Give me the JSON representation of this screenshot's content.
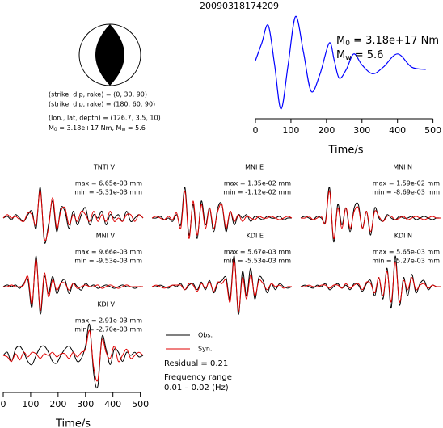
{
  "title": "20090318174209",
  "focal_mechanism": {
    "lines": [
      "(strike, dip, rake) = (0, 30, 90)",
      "(strike, dip, rake) = (180, 60, 90)",
      "(lon., lat, depth) = (126.7, 3.5, 10)"
    ],
    "moment": {
      "symbol": "M",
      "sub": "0",
      "text": " = 3.18e+17 Nm, "
    },
    "magnitude": {
      "symbol": "M",
      "sub": "w",
      "text": " = 5.6"
    }
  },
  "chart_data": [
    {
      "type": "line",
      "x": [
        0,
        18,
        36,
        54,
        72,
        92,
        113,
        135,
        157,
        182,
        208,
        222,
        236,
        256,
        277,
        300,
        330,
        360,
        400,
        440,
        480
      ],
      "series": [
        {
          "color": "#0000ff",
          "values": [
            0,
            0.4,
            0.8,
            -0.1,
            -1.1,
            -0.1,
            1.0,
            0.2,
            -0.7,
            -0.3,
            0.4,
            0,
            -0.4,
            -0.2,
            0.15,
            -0.1,
            -0.3,
            -0.15,
            0.15,
            -0.15,
            -0.2
          ]
        }
      ],
      "xlim": [
        0,
        510
      ],
      "xticks": [
        0,
        100,
        200,
        300,
        400,
        500
      ],
      "xlabel": "Time/s",
      "annotations": [
        {
          "symbol": "M",
          "sub": "0",
          "text": " = 3.18e+17 Nm"
        },
        {
          "symbol": "M",
          "sub": "w",
          "text": " = 5.6"
        }
      ]
    },
    {
      "type": "seismogram",
      "x": [
        0,
        15,
        30,
        45,
        60,
        75,
        90,
        105,
        120,
        135,
        150,
        165,
        180,
        195,
        210,
        225,
        240,
        255,
        270,
        285,
        300,
        315,
        330,
        345,
        360,
        375,
        390,
        405,
        420,
        435,
        450,
        465,
        480,
        495,
        510
      ],
      "xlim": [
        0,
        510
      ],
      "xticks": [
        0,
        100,
        200,
        300,
        400,
        500
      ],
      "xlabel": "Time/s",
      "legend": [
        {
          "name": "Obs.",
          "color": "#000000"
        },
        {
          "name": "Syn.",
          "color": "#e00000"
        }
      ],
      "stations": [
        {
          "name": "TNTI V",
          "max": "max = 6.65e-03 mm",
          "min": "min = -5.31e-03 mm",
          "obs": [
            0,
            0.05,
            -0.05,
            0.1,
            0,
            -0.1,
            0.1,
            0.2,
            -0.3,
            0.9,
            -0.7,
            -0.2,
            0.5,
            -0.4,
            0.3,
            0.2,
            -0.3,
            0.2,
            -0.2,
            0.1,
            0.3,
            -0.2,
            0.1,
            0,
            0.2,
            -0.2,
            0.1,
            0,
            0.1,
            -0.1,
            0.2,
            -0.1,
            0,
            0.1,
            0
          ],
          "syn": [
            0,
            0.1,
            0,
            0.05,
            -0.05,
            -0.1,
            0.15,
            0.1,
            -0.2,
            0.8,
            -0.6,
            -0.3,
            0.6,
            -0.3,
            0.2,
            0.3,
            -0.2,
            0.1,
            -0.1,
            0.2,
            0.1,
            -0.1,
            0.2,
            -0.1,
            0.1,
            -0.1,
            0.2,
            -0.1,
            0,
            -0.1,
            0.1,
            0.1,
            -0.1,
            0.1,
            0
          ]
        },
        {
          "name": "MNI E",
          "max": "max = 1.35e-02 mm",
          "min": "min = -1.12e-02 mm",
          "obs": [
            0,
            0,
            0.05,
            -0.05,
            0,
            -0.1,
            0.1,
            -0.2,
            0.9,
            -0.5,
            0.4,
            -0.6,
            0.5,
            -0.2,
            0.3,
            -0.4,
            0.3,
            0.4,
            -0.4,
            0.2,
            -0.2,
            0.1,
            0,
            0.1,
            -0.1,
            0.05,
            0,
            -0.05,
            0.05,
            0,
            0,
            0.05,
            -0.05,
            0,
            0
          ],
          "syn": [
            0,
            0.05,
            0,
            -0.05,
            0.05,
            -0.05,
            0.15,
            -0.3,
            0.8,
            -0.6,
            0.5,
            -0.5,
            0.4,
            -0.3,
            0.3,
            -0.3,
            0.2,
            0.4,
            -0.3,
            0.2,
            -0.1,
            0.1,
            -0.1,
            0.05,
            0,
            -0.05,
            0.05,
            0,
            0,
            0.05,
            0,
            -0.05,
            0,
            0.05,
            0
          ]
        },
        {
          "name": "MNI N",
          "max": "max = 1.59e-02 mm",
          "min": "min = -8.69e-03 mm",
          "obs": [
            0,
            0.05,
            0,
            -0.05,
            0.05,
            0,
            -0.1,
            0.9,
            -0.7,
            0.4,
            -0.2,
            0.3,
            -0.4,
            0.3,
            0.4,
            -0.3,
            0.2,
            -0.5,
            0.3,
            0,
            -0.1,
            0.1,
            0,
            -0.05,
            0.05,
            0,
            0,
            0.05,
            -0.05,
            0,
            0.05,
            0,
            -0.05,
            0,
            0
          ],
          "syn": [
            0,
            0,
            0.05,
            -0.05,
            0,
            0.05,
            -0.15,
            0.8,
            -0.6,
            0.3,
            -0.3,
            0.3,
            -0.3,
            0.2,
            0.3,
            -0.3,
            0.2,
            -0.4,
            0.2,
            0.05,
            -0.1,
            0.05,
            0.05,
            -0.05,
            0,
            0.05,
            -0.05,
            0,
            0.05,
            0,
            -0.05,
            0,
            0.05,
            0,
            0
          ]
        },
        {
          "name": "MNI V",
          "max": "max = 9.66e-03 mm",
          "min": "min = -9.53e-03 mm",
          "obs": [
            0,
            0.05,
            0,
            0.05,
            -0.05,
            0.1,
            0.2,
            -0.6,
            0.9,
            -0.8,
            0.3,
            -0.2,
            0.3,
            -0.2,
            0.1,
            0.2,
            -0.2,
            0.1,
            0,
            -0.1,
            0.1,
            0,
            0.05,
            -0.05,
            0,
            0.05,
            0,
            -0.05,
            0,
            0.05,
            0,
            0,
            -0.05,
            0,
            0
          ],
          "syn": [
            0,
            0,
            0.05,
            0,
            0,
            0.05,
            0.3,
            -0.5,
            0.8,
            -0.7,
            0.4,
            -0.3,
            0.2,
            -0.1,
            0.1,
            0.1,
            -0.1,
            0.1,
            -0.05,
            0,
            0.05,
            0,
            0,
            0.05,
            -0.05,
            0,
            0.05,
            0,
            -0.05,
            0,
            0.05,
            0,
            0,
            0,
            0
          ]
        },
        {
          "name": "KDI E",
          "max": "max = 5.67e-03 mm",
          "min": "min = -5.53e-03 mm",
          "obs": [
            0,
            0,
            0.05,
            0,
            -0.05,
            0.05,
            0,
            0.1,
            -0.1,
            0.05,
            0.1,
            -0.1,
            0.15,
            -0.1,
            0.2,
            -0.2,
            0.1,
            0.2,
            0.3,
            -0.4,
            1.0,
            -0.9,
            0.5,
            -0.3,
            0.6,
            -0.4,
            0.3,
            0.2,
            -0.2,
            0.1,
            -0.1,
            0.1,
            0,
            -0.05,
            0
          ],
          "syn": [
            0,
            0.05,
            0,
            -0.05,
            0,
            0.05,
            0.05,
            0.05,
            -0.1,
            0.1,
            0.05,
            -0.15,
            0.1,
            -0.05,
            0.15,
            -0.15,
            0.15,
            0.1,
            0.2,
            -0.5,
            0.9,
            -0.8,
            0.3,
            -0.4,
            0.4,
            -0.3,
            0.2,
            0.1,
            -0.1,
            0.1,
            0,
            0.05,
            -0.05,
            0,
            0
          ]
        },
        {
          "name": "KDI N",
          "max": "max = 5.65e-03 mm",
          "min": "min = -5.27e-03 mm",
          "obs": [
            0,
            0.05,
            0,
            -0.05,
            0.05,
            0,
            0.1,
            -0.1,
            0,
            0.1,
            -0.05,
            0.05,
            -0.1,
            0.1,
            0.05,
            -0.15,
            0.1,
            0.2,
            -0.3,
            0.3,
            -0.4,
            0.6,
            -0.7,
            1.0,
            -0.6,
            0.3,
            -0.3,
            0.4,
            -0.2,
            0.1,
            0.2,
            -0.1,
            0.05,
            0,
            0
          ],
          "syn": [
            0,
            0,
            0.05,
            0,
            0,
            0.05,
            0.05,
            -0.05,
            0.05,
            0.05,
            -0.05,
            0.1,
            -0.05,
            0.05,
            0.1,
            -0.1,
            0.15,
            0.1,
            -0.2,
            0.3,
            -0.3,
            0.5,
            -0.5,
            0.8,
            -0.5,
            0.2,
            -0.1,
            0.3,
            -0.1,
            0.05,
            0.1,
            -0.05,
            0.05,
            0,
            0
          ]
        },
        {
          "name": "KDI V",
          "max": "max = 2.91e-03 mm",
          "min": "min = -2.70e-03 mm",
          "obs": [
            0,
            0.1,
            -0.2,
            0.2,
            0.3,
            0.1,
            -0.2,
            -0.3,
            0,
            0.25,
            0.3,
            0.1,
            -0.2,
            -0.25,
            0,
            0.2,
            0.3,
            0.1,
            -0.2,
            -0.1,
            0.3,
            1.0,
            -0.6,
            -1.0,
            0.6,
            0.2,
            -0.3,
            0.2,
            0.1,
            -0.2,
            0.1,
            0,
            0.1,
            -0.05,
            0
          ],
          "syn": [
            0,
            -0.05,
            -0.2,
            0.05,
            -0.15,
            0.1,
            -0.05,
            0.1,
            0.05,
            -0.1,
            0.05,
            0,
            0.1,
            -0.05,
            0.05,
            0.05,
            -0.1,
            0.1,
            -0.05,
            0.1,
            0.2,
            0.8,
            -0.4,
            -0.8,
            0.5,
            0.1,
            -0.1,
            0.3,
            -0.2,
            0,
            0.2,
            -0.1,
            0,
            0.1,
            0
          ]
        }
      ]
    }
  ],
  "notes": {
    "residual": "Residual = 0.21",
    "frequency_label": "Frequency range",
    "frequency_band": "0.01 – 0.02 (Hz)"
  }
}
